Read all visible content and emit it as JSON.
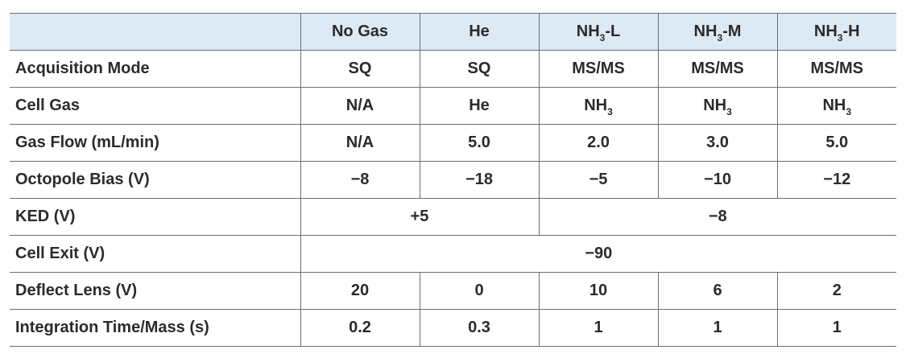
{
  "table": {
    "header": [
      "No Gas",
      "He",
      {
        "text": "NH",
        "sub": "3",
        "suffix": "-L"
      },
      {
        "text": "NH",
        "sub": "3",
        "suffix": "-M"
      },
      {
        "text": "NH",
        "sub": "3",
        "suffix": "-H"
      }
    ],
    "rows": [
      {
        "label": "Acquisition Mode",
        "cells": [
          "SQ",
          "SQ",
          "MS/MS",
          "MS/MS",
          "MS/MS"
        ]
      },
      {
        "label": "Cell Gas",
        "cells": [
          "N/A",
          "He",
          {
            "text": "NH",
            "sub": "3"
          },
          {
            "text": "NH",
            "sub": "3"
          },
          {
            "text": "NH",
            "sub": "3"
          }
        ]
      },
      {
        "label": "Gas Flow (mL/min)",
        "cells": [
          "N/A",
          "5.0",
          "2.0",
          "3.0",
          "5.0"
        ]
      },
      {
        "label": "Octopole Bias (V)",
        "cells": [
          "−8",
          "−18",
          "−5",
          "−10",
          "−12"
        ]
      },
      {
        "label": "KED (V)",
        "cells": [
          "+5",
          "−8"
        ]
      },
      {
        "label": "Cell Exit (V)",
        "cells": [
          "−90"
        ]
      },
      {
        "label": "Deflect Lens (V)",
        "cells": [
          "20",
          "0",
          "10",
          "6",
          "2"
        ]
      },
      {
        "label": "Integration Time/Mass (s)",
        "cells": [
          "0.2",
          "0.3",
          "1",
          "1",
          "1"
        ]
      }
    ]
  }
}
